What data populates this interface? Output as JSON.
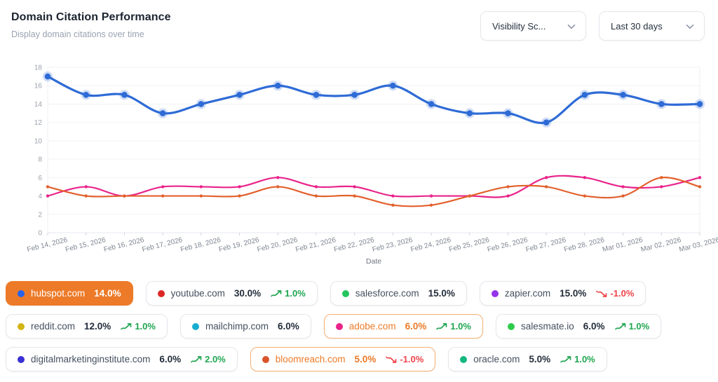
{
  "header": {
    "title": "Domain Citation Performance",
    "subtitle": "Display domain citations over time"
  },
  "controls": {
    "metric_dropdown_value": "Visibility Sc...",
    "range_dropdown_value": "Last 30 days"
  },
  "colors": {
    "accent_orange": "#ed7a28",
    "accent_orange_border": "#f3b173",
    "trend_up": "#1ea550",
    "trend_down": "#ef4449",
    "grid": "#f1f2f5",
    "axis_text": "#9aa1ac",
    "x_axis_text": "#7f8692"
  },
  "chart_data": {
    "type": "line",
    "x": [
      "Feb 14, 2026",
      "Feb 15, 2026",
      "Feb 16, 2026",
      "Feb 17, 2026",
      "Feb 18, 2026",
      "Feb 19, 2026",
      "Feb 20, 2026",
      "Feb 21, 2026",
      "Feb 22, 2026",
      "Feb 23, 2026",
      "Feb 24, 2026",
      "Feb 25, 2026",
      "Feb 26, 2026",
      "Feb 27, 2026",
      "Feb 28, 2026",
      "Mar 01, 2026",
      "Mar 02, 2026",
      "Mar 03, 2026"
    ],
    "xlabel": "Date",
    "ylabel": "",
    "ylim": [
      0,
      18
    ],
    "ytick_step": 2,
    "grid": true,
    "legend_position": "bottom",
    "series": [
      {
        "name": "adobe.com",
        "color": "#e9238a",
        "width": 2.2,
        "marker": 2.2,
        "values": [
          4,
          5,
          4,
          5,
          5,
          5,
          6,
          5,
          5,
          4,
          4,
          4,
          4,
          6,
          6,
          5,
          5,
          6
        ]
      },
      {
        "name": "bloomreach.com",
        "color": "#e2602c",
        "width": 2.2,
        "marker": 2.2,
        "values": [
          5,
          4,
          4,
          4,
          4,
          4,
          5,
          4,
          4,
          3,
          3,
          4,
          5,
          5,
          4,
          4,
          6,
          5
        ]
      },
      {
        "name": "hubspot.com",
        "color": "#2e6bd6",
        "width": 3.2,
        "marker": 4.3,
        "halo": true,
        "values": [
          17,
          15,
          15,
          13,
          14,
          15,
          16,
          15,
          15,
          16,
          14,
          13,
          13,
          12,
          15,
          15,
          14,
          14
        ]
      }
    ]
  },
  "legend": {
    "rows": [
      [
        {
          "label": "hubspot.com",
          "value": "14.0%",
          "dot_color": "#2563eb",
          "state": "selected",
          "trend": null
        },
        {
          "label": "youtube.com",
          "value": "30.0%",
          "dot_color": "#dc2626",
          "state": "default",
          "trend": {
            "dir": "up",
            "text": "1.0%"
          }
        },
        {
          "label": "salesforce.com",
          "value": "15.0%",
          "dot_color": "#22c55e",
          "state": "default",
          "trend": null
        },
        {
          "label": "zapier.com",
          "value": "15.0%",
          "dot_color": "#9333ea",
          "state": "default",
          "trend": {
            "dir": "down",
            "text": "-1.0%"
          }
        }
      ],
      [
        {
          "label": "reddit.com",
          "value": "12.0%",
          "dot_color": "#d4b414",
          "state": "default",
          "trend": {
            "dir": "up",
            "text": "1.0%"
          }
        },
        {
          "label": "mailchimp.com",
          "value": "6.0%",
          "dot_color": "#17aed0",
          "state": "default",
          "trend": null
        },
        {
          "label": "adobe.com",
          "value": "6.0%",
          "dot_color": "#e9238a",
          "state": "highlighted",
          "trend": {
            "dir": "up",
            "text": "1.0%"
          }
        },
        {
          "label": "salesmate.io",
          "value": "6.0%",
          "dot_color": "#2ecc4b",
          "state": "default",
          "trend": {
            "dir": "up",
            "text": "1.0%"
          }
        }
      ],
      [
        {
          "label": "digitalmarketinginstitute.com",
          "value": "6.0%",
          "dot_color": "#3a30d5",
          "state": "default",
          "trend": {
            "dir": "up",
            "text": "2.0%"
          }
        },
        {
          "label": "bloomreach.com",
          "value": "5.0%",
          "dot_color": "#d9542b",
          "state": "highlighted",
          "trend": {
            "dir": "down",
            "text": "-1.0%"
          }
        },
        {
          "label": "oracle.com",
          "value": "5.0%",
          "dot_color": "#14b87c",
          "state": "default",
          "trend": {
            "dir": "up",
            "text": "1.0%"
          }
        }
      ]
    ]
  }
}
